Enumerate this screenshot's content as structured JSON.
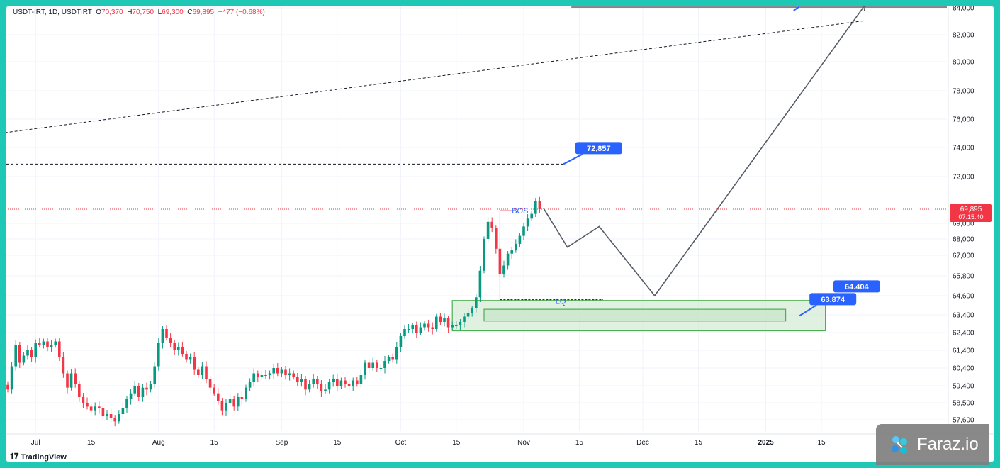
{
  "header": {
    "symbol": "USDT-IRT, 1D, USDTIRT",
    "o_label": "O",
    "o_value": "70,370",
    "h_label": "H",
    "h_value": "70,750",
    "l_label": "L",
    "l_value": "69,300",
    "c_label": "C",
    "c_value": "69,895",
    "change": "−477 (−0.68%)"
  },
  "price_tag": {
    "price": "69,895",
    "countdown": "07:15:40",
    "color": "#f23645"
  },
  "watermark": {
    "brand": "TradingView"
  },
  "badge": {
    "text": "Faraz.io"
  },
  "colors": {
    "up": "#089981",
    "down": "#f23645",
    "zone_fill": "#c8e6c9",
    "zone_stroke": "#4caf50",
    "label_bg": "#2962ff"
  },
  "chart_data": {
    "type": "candlestick",
    "title": "USDT-IRT, 1D, USDTIRT",
    "ylim": [
      56900,
      84600
    ],
    "y_ticks": [
      57600,
      58500,
      59400,
      60400,
      61400,
      62400,
      63400,
      64600,
      65800,
      67000,
      68000,
      69000,
      72000,
      74000,
      76000,
      78000,
      80000,
      82000,
      84000
    ],
    "y_tick_labels": [
      "57,600",
      "58,500",
      "59,400",
      "60,400",
      "61,400",
      "62,400",
      "63,400",
      "64,600",
      "65,800",
      "67,000",
      "68,000",
      "69,000",
      "72,000",
      "74,000",
      "76,000",
      "78,000",
      "80,000",
      "82,000",
      "84,000"
    ],
    "x_ticks": [
      {
        "day": 7,
        "label": "Jul"
      },
      {
        "day": 21,
        "label": "15"
      },
      {
        "day": 38,
        "label": "Aug"
      },
      {
        "day": 52,
        "label": "15"
      },
      {
        "day": 69,
        "label": "Sep"
      },
      {
        "day": 83,
        "label": "15"
      },
      {
        "day": 99,
        "label": "Oct"
      },
      {
        "day": 113,
        "label": "15"
      },
      {
        "day": 130,
        "label": "Nov"
      },
      {
        "day": 144,
        "label": "15"
      },
      {
        "day": 160,
        "label": "Dec"
      },
      {
        "day": 174,
        "label": "15"
      },
      {
        "day": 191,
        "label": "2025"
      },
      {
        "day": 205,
        "label": "15"
      }
    ],
    "closes": [
      59200,
      60500,
      61700,
      60700,
      61100,
      61400,
      61000,
      61800,
      61700,
      61900,
      61600,
      61700,
      61900,
      61000,
      60100,
      59300,
      60100,
      59500,
      58800,
      58500,
      58300,
      58100,
      58300,
      58200,
      57800,
      57900,
      57700,
      57500,
      57900,
      58200,
      58700,
      59000,
      59400,
      58800,
      59300,
      59200,
      59500,
      60500,
      61800,
      62600,
      62100,
      61800,
      61400,
      61600,
      61200,
      60900,
      61000,
      60300,
      60000,
      60500,
      59800,
      59300,
      59000,
      58600,
      58100,
      58500,
      58700,
      58300,
      58800,
      58700,
      59300,
      59600,
      60100,
      59900,
      60000,
      60000,
      60100,
      60400,
      60100,
      60300,
      60000,
      60100,
      59900,
      59600,
      59800,
      59200,
      59500,
      59800,
      59500,
      59100,
      59200,
      59600,
      59800,
      59400,
      59700,
      59500,
      59400,
      59700,
      59500,
      60000,
      60700,
      60400,
      60700,
      60400,
      60400,
      60800,
      61000,
      60900,
      61600,
      62200,
      62600,
      62600,
      62800,
      62400,
      62700,
      62900,
      62700,
      62600,
      63300,
      63000,
      63200,
      62700,
      62800,
      62800,
      63000,
      63300,
      63500,
      63800,
      64500,
      66100,
      68000,
      69100,
      68700,
      67400,
      65900,
      66400,
      67100,
      67300,
      67700,
      68200,
      68800,
      69300,
      69600,
      70400,
      69900
    ],
    "series_note": "daily candles from day 0 (late June 2024) to day 133 (early Nov 2024)",
    "annotations": [
      {
        "type": "price_label",
        "text": "72,857",
        "value": 72857
      },
      {
        "type": "price_label",
        "text": "64.404",
        "value": 64404
      },
      {
        "type": "price_label",
        "text": "63,874",
        "value": 63874
      },
      {
        "type": "text",
        "text": "BOS"
      },
      {
        "type": "text",
        "text": "LQ"
      },
      {
        "type": "horizontal_line",
        "value": 72857,
        "style": "dashed"
      },
      {
        "type": "horizontal_line",
        "value": 84050,
        "style": "solid"
      },
      {
        "type": "trend_line",
        "points": [
          [
            -2,
            75000
          ],
          [
            216,
            83050
          ]
        ],
        "style": "dashed"
      },
      {
        "type": "zone",
        "from_day": 112,
        "to_day": 206,
        "low": 62500,
        "high": 64300
      },
      {
        "type": "zone",
        "from_day": 120,
        "to_day": 196,
        "low": 63050,
        "high": 63750
      },
      {
        "type": "projection",
        "points": [
          [
            135,
            69950
          ],
          [
            141,
            67500
          ],
          [
            149,
            68800
          ],
          [
            163,
            64600
          ],
          [
            216,
            84200
          ]
        ]
      }
    ]
  }
}
